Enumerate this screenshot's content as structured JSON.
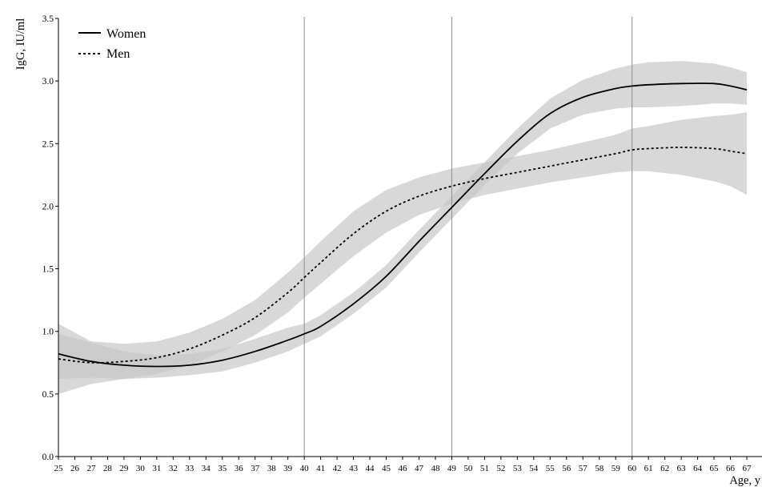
{
  "chart_data": {
    "type": "line",
    "xlabel": "Age, y",
    "ylabel": "IgG, IU/ml",
    "xlim": [
      25,
      67
    ],
    "ylim": [
      0.0,
      3.5
    ],
    "yticks": [
      "0.0",
      "0.5",
      "1.0",
      "1.5",
      "2.0",
      "2.5",
      "3.0",
      "3.5"
    ],
    "xticks": [
      25,
      26,
      27,
      28,
      29,
      30,
      31,
      32,
      33,
      34,
      35,
      36,
      37,
      38,
      39,
      40,
      41,
      42,
      43,
      44,
      45,
      46,
      47,
      48,
      49,
      50,
      51,
      52,
      53,
      54,
      55,
      56,
      57,
      58,
      59,
      60,
      61,
      62,
      63,
      64,
      65,
      66,
      67
    ],
    "vertical_lines": [
      40,
      49,
      60
    ],
    "grid": false,
    "legend_position": "top-left",
    "colors": {
      "band": "#c8c8c8",
      "line": "#000000",
      "vline": "#8c8c8c"
    },
    "series": [
      {
        "name": "Women",
        "style": "solid",
        "x": [
          25,
          27,
          29,
          31,
          33,
          35,
          37,
          39,
          40,
          41,
          43,
          45,
          47,
          49,
          51,
          53,
          55,
          57,
          59,
          60,
          61,
          63,
          65,
          66,
          67
        ],
        "y": [
          0.82,
          0.76,
          0.73,
          0.72,
          0.73,
          0.77,
          0.84,
          0.93,
          0.98,
          1.04,
          1.22,
          1.44,
          1.72,
          1.99,
          2.26,
          2.52,
          2.74,
          2.87,
          2.94,
          2.96,
          2.97,
          2.98,
          2.98,
          2.96,
          2.93
        ],
        "lower": [
          0.62,
          0.63,
          0.62,
          0.63,
          0.65,
          0.68,
          0.75,
          0.84,
          0.9,
          0.96,
          1.14,
          1.35,
          1.63,
          1.9,
          2.17,
          2.42,
          2.62,
          2.73,
          2.78,
          2.79,
          2.79,
          2.8,
          2.82,
          2.82,
          2.81
        ],
        "upper": [
          0.98,
          0.91,
          0.84,
          0.81,
          0.82,
          0.86,
          0.94,
          1.03,
          1.06,
          1.13,
          1.31,
          1.53,
          1.81,
          2.08,
          2.35,
          2.62,
          2.86,
          3.01,
          3.1,
          3.13,
          3.15,
          3.16,
          3.14,
          3.11,
          3.07
        ]
      },
      {
        "name": "Men",
        "style": "dashed",
        "x": [
          25,
          27,
          29,
          31,
          33,
          35,
          37,
          39,
          40,
          41,
          43,
          45,
          47,
          49,
          51,
          53,
          55,
          57,
          59,
          60,
          61,
          63,
          65,
          66,
          67
        ],
        "y": [
          0.78,
          0.75,
          0.76,
          0.79,
          0.86,
          0.97,
          1.11,
          1.31,
          1.43,
          1.55,
          1.78,
          1.96,
          2.08,
          2.16,
          2.22,
          2.27,
          2.32,
          2.37,
          2.42,
          2.45,
          2.46,
          2.47,
          2.46,
          2.44,
          2.42
        ],
        "lower": [
          0.5,
          0.58,
          0.62,
          0.66,
          0.73,
          0.84,
          0.97,
          1.15,
          1.27,
          1.38,
          1.6,
          1.79,
          1.93,
          2.02,
          2.09,
          2.14,
          2.19,
          2.23,
          2.27,
          2.28,
          2.28,
          2.25,
          2.2,
          2.16,
          2.09
        ],
        "upper": [
          1.06,
          0.92,
          0.9,
          0.92,
          0.99,
          1.1,
          1.25,
          1.47,
          1.59,
          1.72,
          1.96,
          2.13,
          2.23,
          2.3,
          2.35,
          2.4,
          2.45,
          2.51,
          2.57,
          2.62,
          2.64,
          2.69,
          2.72,
          2.73,
          2.75
        ]
      }
    ]
  }
}
